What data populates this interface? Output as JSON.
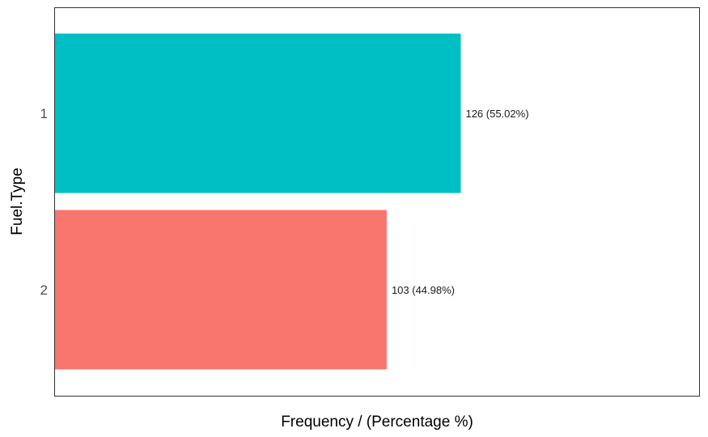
{
  "chart_data": {
    "type": "bar",
    "orientation": "horizontal",
    "categories": [
      "1",
      "2"
    ],
    "values": [
      126,
      103
    ],
    "percentages": [
      "55.02%",
      "44.98%"
    ],
    "bar_labels": [
      "126 (55.02%)",
      "103 (44.98%)"
    ],
    "colors": [
      "#00BFC4",
      "#F8766D"
    ],
    "xlabel": "Frequency / (Percentage %)",
    "ylabel": "Fuel.Type",
    "xlim": [
      0,
      200
    ],
    "x_ticks_shown": false,
    "grid": false,
    "legend": "none"
  }
}
